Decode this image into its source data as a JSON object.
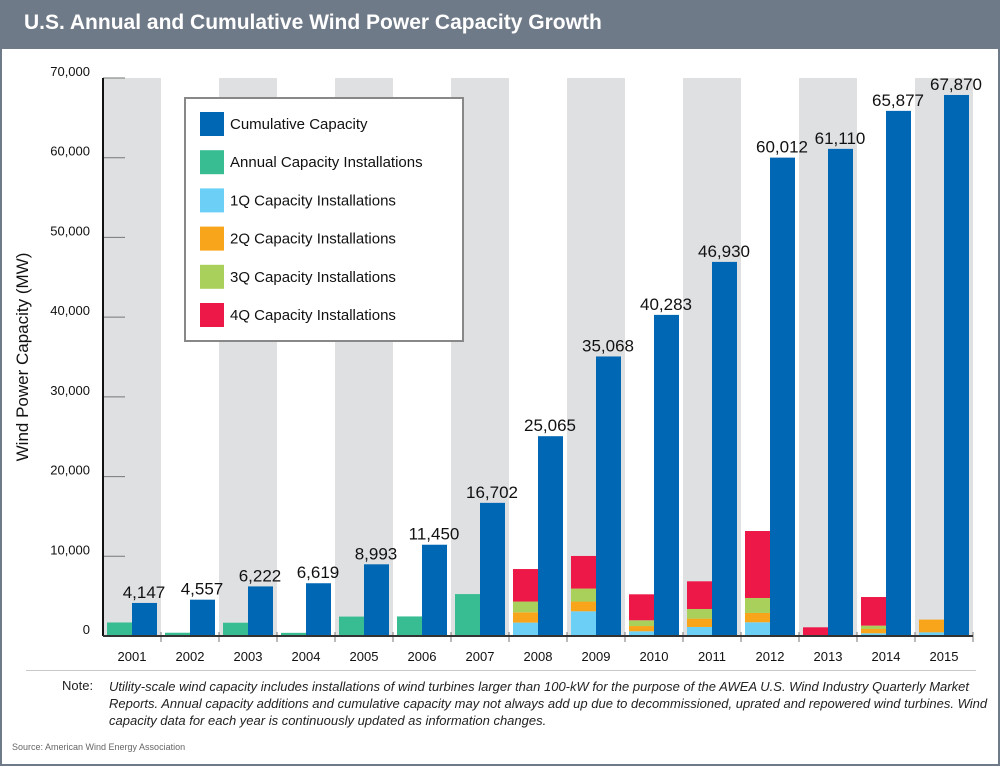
{
  "title": "U.S. Annual and Cumulative Wind Power Capacity Growth",
  "note": {
    "label": "Note:",
    "text": "Utility-scale wind capacity includes installations of wind turbines larger than 100-kW for the purpose of the AWEA U.S. Wind Industry Quarterly Market Reports. Annual capacity additions and cumulative capacity may not always add up due to decommissioned, uprated and repowered wind turbines. Wind capacity data for each year is continuously updated as information changes."
  },
  "source": "Source: American Wind Energy Association",
  "chart_data": {
    "type": "bar",
    "title": "U.S. Annual and Cumulative Wind Power Capacity Growth",
    "ylabel": "Wind Power Capacity (MW)",
    "xlabel": "",
    "ylim": [
      0,
      70000
    ],
    "yticks": [
      0,
      10000,
      20000,
      30000,
      40000,
      50000,
      60000,
      70000
    ],
    "ytick_labels": [
      "0",
      "10,000",
      "20,000",
      "30,000",
      "40,000",
      "50,000",
      "60,000",
      "70,000"
    ],
    "legend_position": "top-left",
    "categories": [
      "2001",
      "2002",
      "2003",
      "2004",
      "2005",
      "2006",
      "2007",
      "2008",
      "2009",
      "2010",
      "2011",
      "2012",
      "2013",
      "2014",
      "2015"
    ],
    "series": [
      {
        "name": "Cumulative Capacity",
        "color": "#0067b4",
        "values": [
          4147,
          4557,
          6222,
          6619,
          8993,
          11450,
          16702,
          25065,
          35068,
          40283,
          46930,
          60012,
          61110,
          65877,
          67870
        ],
        "labels": [
          "4,147",
          "4,557",
          "6,222",
          "6,619",
          "8,993",
          "11,450",
          "16,702",
          "25,065",
          "35,068",
          "40,283",
          "46,930",
          "60,012",
          "61,110",
          "65,877",
          "67,870"
        ]
      },
      {
        "name": "Annual Capacity Installations",
        "color": "#38bd92",
        "values": [
          1697,
          410,
          1665,
          397,
          2436,
          2454,
          5260,
          null,
          null,
          null,
          null,
          null,
          null,
          null,
          null
        ]
      },
      {
        "name": "1Q Capacity Installations",
        "color": "#6ccff6",
        "values": [
          null,
          null,
          null,
          null,
          null,
          null,
          null,
          1680,
          3100,
          590,
          1130,
          1720,
          0,
          340,
          460
        ]
      },
      {
        "name": "2Q Capacity Installations",
        "color": "#f9a51b",
        "values": [
          null,
          null,
          null,
          null,
          null,
          null,
          null,
          1290,
          1220,
          660,
          1050,
          1170,
          30,
          540,
          1600
        ]
      },
      {
        "name": "3Q Capacity Installations",
        "color": "#a8d05a",
        "values": [
          null,
          null,
          null,
          null,
          null,
          null,
          null,
          1350,
          1630,
          720,
          1210,
          1880,
          0,
          420,
          0
        ]
      },
      {
        "name": "4Q Capacity Installations",
        "color": "#ed1847",
        "values": [
          null,
          null,
          null,
          null,
          null,
          null,
          null,
          4080,
          4090,
          3260,
          3470,
          8400,
          1060,
          3590,
          0
        ]
      }
    ]
  }
}
